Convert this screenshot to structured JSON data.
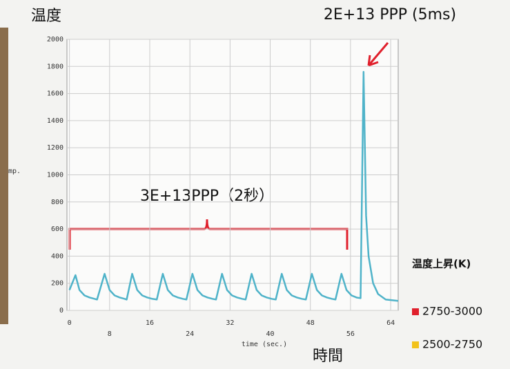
{
  "chart_data": {
    "type": "line",
    "title": "温度",
    "ylabel": "mp.",
    "xlabel": "time (sec.)",
    "xlabel_big": "時間",
    "annotations": [
      "2E+13 PPP (5ms)",
      "3E+13PPP（2秒）"
    ],
    "x": [
      0,
      1.2,
      2,
      3,
      4,
      5,
      5.5,
      7.0,
      8,
      9,
      10,
      11,
      11.4,
      12.5,
      13.5,
      14.5,
      15.5,
      16.5,
      17.4,
      18.6,
      19.6,
      20.6,
      21.6,
      22.6,
      23.3,
      24.5,
      25.5,
      26.5,
      27.5,
      28.5,
      29.2,
      30.4,
      31.4,
      32.4,
      33.4,
      34.4,
      35.1,
      36.3,
      37.3,
      38.3,
      39.3,
      40.3,
      41.1,
      42.3,
      43.3,
      44.3,
      45.3,
      46.3,
      47.1,
      48.3,
      49.3,
      50.3,
      51.3,
      52.3,
      53.0,
      54.2,
      55.2,
      56.2,
      57.2,
      58.0,
      58.6,
      59.1,
      59.6,
      60.5,
      61.5,
      63,
      65.5
    ],
    "series": [
      {
        "color": "#4fb3c9",
        "values": [
          150,
          260,
          150,
          110,
          95,
          85,
          80,
          270,
          150,
          110,
          95,
          85,
          80,
          270,
          150,
          110,
          95,
          85,
          80,
          270,
          150,
          110,
          95,
          85,
          80,
          270,
          150,
          110,
          95,
          85,
          80,
          270,
          150,
          110,
          95,
          85,
          80,
          270,
          150,
          110,
          95,
          85,
          80,
          270,
          150,
          110,
          95,
          85,
          80,
          270,
          150,
          110,
          95,
          85,
          80,
          270,
          150,
          110,
          95,
          90,
          1760,
          700,
          400,
          200,
          120,
          80,
          70
        ]
      }
    ],
    "xlim": [
      -0.5,
      65.5
    ],
    "ylim": [
      0,
      2000
    ],
    "xticks": [
      0,
      8,
      16,
      24,
      32,
      40,
      48,
      56,
      64
    ],
    "yticks": [
      0,
      200,
      400,
      600,
      800,
      1000,
      1200,
      1400,
      1600,
      1800,
      2000
    ],
    "grid": true,
    "legend": {
      "title": "温度上昇(K)",
      "items": [
        {
          "label": "2750-3000",
          "color": "#e0202c"
        },
        {
          "label": "2500-2750",
          "color": "#f2c21a"
        }
      ]
    }
  }
}
